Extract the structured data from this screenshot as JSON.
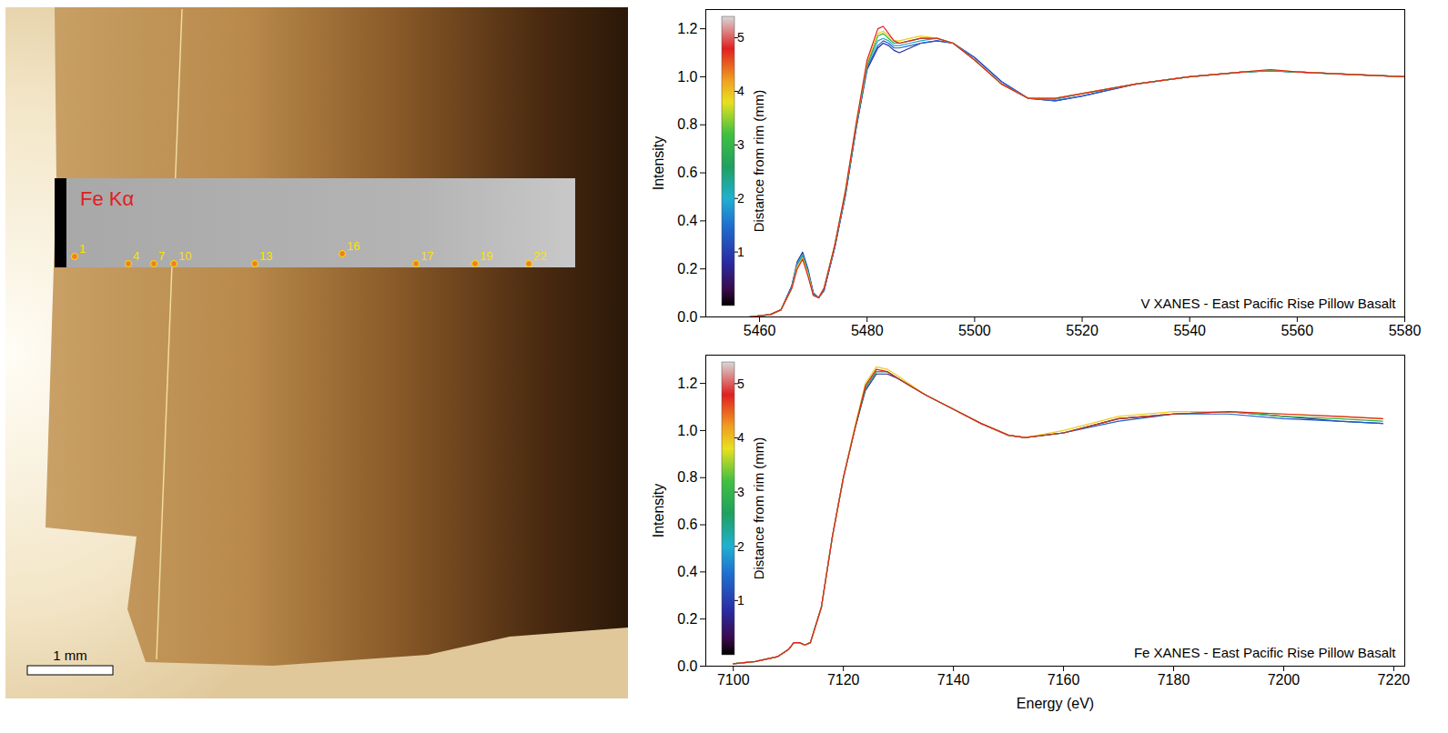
{
  "image": {
    "map_label": "Fe Kα",
    "points": [
      "1",
      "4",
      "7",
      "10",
      "13",
      "16",
      "17",
      "19",
      "22"
    ],
    "scale_bar": "1 mm"
  },
  "chart_data": [
    {
      "type": "line",
      "annotation": "V XANES - East Pacific Rise Pillow Basalt",
      "ylabel": "Intensity",
      "grid": false,
      "xlim": [
        5450,
        5580
      ],
      "xticks": [
        5460,
        5480,
        5500,
        5520,
        5540,
        5560,
        5580
      ],
      "ylim": [
        0,
        1.28
      ],
      "yticks": [
        {
          "value": 0,
          "label": "0.0"
        },
        0.2,
        0.4,
        0.6,
        0.8,
        {
          "value": 1,
          "label": "1.0"
        },
        1.2
      ],
      "colorbar": {
        "label": "Distance from rim (mm)",
        "range": [
          0,
          5.4
        ],
        "ticks": [
          1,
          2,
          3,
          4,
          5
        ],
        "stops": [
          {
            "value": 0,
            "color": "#000000"
          },
          {
            "value": 0.3,
            "color": "#3a0a4a"
          },
          {
            "value": 0.8,
            "color": "#2a2aa0"
          },
          {
            "value": 1.5,
            "color": "#1f6fd0"
          },
          {
            "value": 2.0,
            "color": "#20b0d0"
          },
          {
            "value": 2.6,
            "color": "#20a060"
          },
          {
            "value": 3.2,
            "color": "#40c040"
          },
          {
            "value": 3.8,
            "color": "#e8e020"
          },
          {
            "value": 4.2,
            "color": "#f0a020"
          },
          {
            "value": 4.8,
            "color": "#e02020"
          },
          {
            "value": 5.4,
            "color": "#d8d8d8"
          }
        ]
      },
      "x": [
        5450,
        5458,
        5462,
        5464,
        5466,
        5467,
        5468,
        5469,
        5470,
        5471,
        5472,
        5474,
        5476,
        5478,
        5480,
        5482,
        5483,
        5484,
        5485,
        5486,
        5488,
        5490,
        5493,
        5496,
        5500,
        5505,
        5510,
        5515,
        5520,
        5530,
        5540,
        5550,
        5555,
        5560,
        5570,
        5580
      ],
      "series": [
        {
          "distance": 0.5,
          "color": "#2a2a9a",
          "values": [
            0.0,
            0.0,
            0.01,
            0.03,
            0.13,
            0.23,
            0.27,
            0.2,
            0.1,
            0.08,
            0.11,
            0.29,
            0.51,
            0.79,
            1.03,
            1.12,
            1.14,
            1.13,
            1.11,
            1.1,
            1.12,
            1.14,
            1.15,
            1.14,
            1.08,
            0.98,
            0.91,
            0.9,
            0.92,
            0.97,
            1.0,
            1.02,
            1.025,
            1.02,
            1.01,
            1.0
          ]
        },
        {
          "distance": 1,
          "color": "#1f5fd0",
          "values": [
            0.0,
            0.0,
            0.01,
            0.03,
            0.13,
            0.22,
            0.26,
            0.19,
            0.1,
            0.08,
            0.11,
            0.29,
            0.51,
            0.79,
            1.04,
            1.13,
            1.15,
            1.14,
            1.12,
            1.12,
            1.13,
            1.14,
            1.15,
            1.14,
            1.08,
            0.98,
            0.91,
            0.9,
            0.92,
            0.97,
            1.0,
            1.02,
            1.025,
            1.02,
            1.01,
            1.0
          ]
        },
        {
          "distance": 2,
          "color": "#20a8c8",
          "values": [
            0.0,
            0.0,
            0.01,
            0.03,
            0.12,
            0.22,
            0.26,
            0.19,
            0.09,
            0.08,
            0.12,
            0.3,
            0.52,
            0.8,
            1.05,
            1.15,
            1.16,
            1.15,
            1.13,
            1.13,
            1.14,
            1.15,
            1.16,
            1.14,
            1.07,
            0.97,
            0.91,
            0.905,
            0.93,
            0.97,
            1.0,
            1.02,
            1.025,
            1.02,
            1.01,
            1.0
          ]
        },
        {
          "distance": 3,
          "color": "#30b040",
          "values": [
            0.0,
            0.0,
            0.01,
            0.03,
            0.12,
            0.21,
            0.25,
            0.18,
            0.09,
            0.08,
            0.12,
            0.3,
            0.52,
            0.8,
            1.05,
            1.17,
            1.18,
            1.16,
            1.14,
            1.14,
            1.15,
            1.16,
            1.16,
            1.14,
            1.07,
            0.97,
            0.91,
            0.91,
            0.93,
            0.97,
            1.0,
            1.02,
            1.025,
            1.02,
            1.01,
            1.0
          ]
        },
        {
          "distance": 4,
          "color": "#e8d020",
          "values": [
            0.0,
            0.0,
            0.01,
            0.03,
            0.12,
            0.21,
            0.245,
            0.18,
            0.09,
            0.08,
            0.12,
            0.3,
            0.53,
            0.81,
            1.06,
            1.18,
            1.19,
            1.17,
            1.15,
            1.15,
            1.16,
            1.17,
            1.16,
            1.14,
            1.07,
            0.97,
            0.91,
            0.91,
            0.93,
            0.97,
            1.0,
            1.02,
            1.03,
            1.02,
            1.01,
            1.0
          ]
        },
        {
          "distance": 5,
          "color": "#e02020",
          "values": [
            0.0,
            0.0,
            0.01,
            0.03,
            0.12,
            0.2,
            0.24,
            0.17,
            0.09,
            0.08,
            0.12,
            0.3,
            0.53,
            0.81,
            1.07,
            1.2,
            1.21,
            1.18,
            1.15,
            1.14,
            1.15,
            1.16,
            1.16,
            1.14,
            1.07,
            0.97,
            0.91,
            0.91,
            0.93,
            0.97,
            1.0,
            1.02,
            1.03,
            1.02,
            1.01,
            1.0
          ]
        }
      ]
    },
    {
      "type": "line",
      "annotation": "Fe XANES - East Pacific Rise Pillow Basalt",
      "xlabel": "Energy (eV)",
      "ylabel": "Intensity",
      "grid": false,
      "xlim": [
        7095,
        7222
      ],
      "xticks": [
        7100,
        7120,
        7140,
        7160,
        7180,
        7200,
        7220
      ],
      "ylim": [
        0,
        1.32
      ],
      "yticks": [
        {
          "value": 0,
          "label": "0.0"
        },
        0.2,
        0.4,
        0.6,
        0.8,
        {
          "value": 1,
          "label": "1.0"
        },
        1.2
      ],
      "colorbar": {
        "label": "Distance from rim (mm)",
        "range": [
          0,
          5.4
        ],
        "ticks": [
          1,
          2,
          3,
          4,
          5
        ],
        "stops": [
          {
            "value": 0,
            "color": "#000000"
          },
          {
            "value": 0.3,
            "color": "#3a0a4a"
          },
          {
            "value": 0.8,
            "color": "#2a2aa0"
          },
          {
            "value": 1.5,
            "color": "#1f6fd0"
          },
          {
            "value": 2.0,
            "color": "#20b0d0"
          },
          {
            "value": 2.6,
            "color": "#20a060"
          },
          {
            "value": 3.2,
            "color": "#40c040"
          },
          {
            "value": 3.8,
            "color": "#e8e020"
          },
          {
            "value": 4.2,
            "color": "#f0a020"
          },
          {
            "value": 4.8,
            "color": "#e02020"
          },
          {
            "value": 5.4,
            "color": "#d8d8d8"
          }
        ]
      },
      "x": [
        7100,
        7104,
        7108,
        7110,
        7111,
        7112,
        7113,
        7114,
        7116,
        7118,
        7120,
        7122,
        7124,
        7126,
        7128,
        7130,
        7135,
        7140,
        7145,
        7150,
        7153,
        7160,
        7170,
        7180,
        7190,
        7200,
        7210,
        7218
      ],
      "series": [
        {
          "distance": 0.5,
          "color": "#2a2a9a",
          "values": [
            0.01,
            0.02,
            0.04,
            0.07,
            0.1,
            0.1,
            0.09,
            0.1,
            0.25,
            0.55,
            0.8,
            1.0,
            1.17,
            1.24,
            1.24,
            1.22,
            1.15,
            1.09,
            1.03,
            0.98,
            0.97,
            0.99,
            1.05,
            1.07,
            1.08,
            1.06,
            1.04,
            1.03
          ]
        },
        {
          "distance": 1,
          "color": "#1f5fd0",
          "values": [
            0.01,
            0.02,
            0.04,
            0.07,
            0.1,
            0.1,
            0.09,
            0.1,
            0.25,
            0.55,
            0.8,
            1.0,
            1.18,
            1.25,
            1.25,
            1.22,
            1.15,
            1.09,
            1.03,
            0.98,
            0.97,
            0.99,
            1.04,
            1.07,
            1.07,
            1.05,
            1.04,
            1.03
          ]
        },
        {
          "distance": 3,
          "color": "#30b040",
          "values": [
            0.01,
            0.02,
            0.04,
            0.07,
            0.1,
            0.1,
            0.09,
            0.1,
            0.25,
            0.55,
            0.8,
            1.0,
            1.18,
            1.25,
            1.25,
            1.22,
            1.15,
            1.09,
            1.03,
            0.98,
            0.97,
            0.99,
            1.05,
            1.07,
            1.08,
            1.06,
            1.05,
            1.04
          ]
        },
        {
          "distance": 4,
          "color": "#e8d020",
          "values": [
            0.01,
            0.02,
            0.04,
            0.07,
            0.1,
            0.1,
            0.09,
            0.1,
            0.25,
            0.55,
            0.8,
            1.01,
            1.2,
            1.27,
            1.26,
            1.23,
            1.15,
            1.09,
            1.03,
            0.98,
            0.97,
            1.0,
            1.06,
            1.08,
            1.08,
            1.07,
            1.06,
            1.05
          ]
        },
        {
          "distance": 5,
          "color": "#e02020",
          "values": [
            0.01,
            0.02,
            0.04,
            0.07,
            0.1,
            0.1,
            0.09,
            0.1,
            0.25,
            0.55,
            0.8,
            1.0,
            1.19,
            1.26,
            1.25,
            1.22,
            1.15,
            1.09,
            1.03,
            0.98,
            0.97,
            0.99,
            1.05,
            1.07,
            1.08,
            1.07,
            1.06,
            1.05
          ]
        }
      ]
    }
  ]
}
